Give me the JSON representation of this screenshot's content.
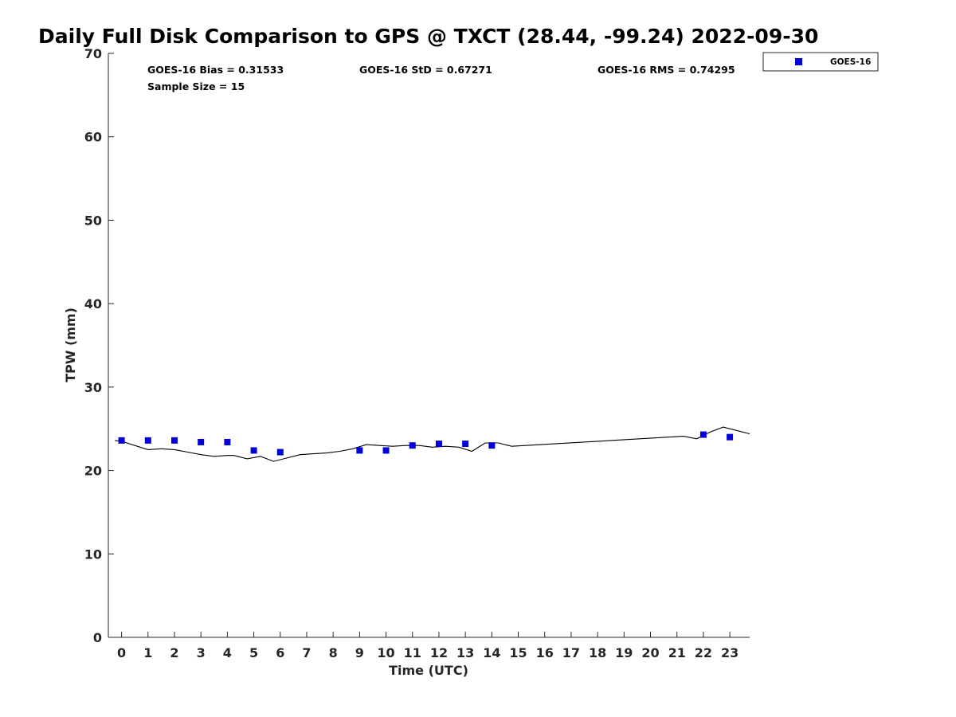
{
  "colors": {
    "marker": "#0000dd",
    "line": "#000000",
    "axis": "#262626",
    "background": "#ffffff"
  },
  "chart_data": {
    "type": "scatter",
    "title": "Daily Full Disk Comparison to GPS @ TXCT (28.44, -99.24) 2022-09-30",
    "xlabel": "Time (UTC)",
    "ylabel": "TPW (mm)",
    "xlim": [
      -0.5,
      23.75
    ],
    "ylim": [
      0,
      70
    ],
    "xticks": [
      0,
      1,
      2,
      3,
      4,
      5,
      6,
      7,
      8,
      9,
      10,
      11,
      12,
      13,
      14,
      15,
      16,
      17,
      18,
      19,
      20,
      21,
      22,
      23
    ],
    "yticks": [
      0,
      10,
      20,
      30,
      40,
      50,
      60,
      70
    ],
    "grid": false,
    "legend": {
      "placement": "outside-top-right",
      "entries": [
        "GOES-16"
      ]
    },
    "stats": {
      "bias": "GOES-16 Bias = 0.31533",
      "std": "GOES-16 StD = 0.67271",
      "rms": "GOES-16 RMS = 0.74295",
      "sample": "Sample Size = 15"
    },
    "series": [
      {
        "name": "GOES-16",
        "kind": "marker",
        "x": [
          0,
          1,
          2,
          3,
          4,
          5,
          6,
          9,
          10,
          11,
          12,
          13,
          14,
          22,
          23
        ],
        "y": [
          23.6,
          23.6,
          23.6,
          23.4,
          23.4,
          22.4,
          22.2,
          22.4,
          22.4,
          23.0,
          23.2,
          23.2,
          23.0,
          24.3,
          24.0
        ]
      },
      {
        "kind": "line",
        "x": [
          -0.25,
          0,
          0.5,
          1,
          1.5,
          2,
          2.5,
          3,
          3.5,
          4,
          4.25,
          4.75,
          5.25,
          5.75,
          6.25,
          6.75,
          7.25,
          7.75,
          8.25,
          8.75,
          9.25,
          9.75,
          10.25,
          10.75,
          11.25,
          11.75,
          12.25,
          12.75,
          13.25,
          13.75,
          14.25,
          14.75,
          21.25,
          21.75,
          22.25,
          22.75,
          23.25,
          23.75
        ],
        "y": [
          23.6,
          23.5,
          23.0,
          22.5,
          22.6,
          22.5,
          22.2,
          21.9,
          21.7,
          21.8,
          21.8,
          21.4,
          21.7,
          21.1,
          21.5,
          21.9,
          22.0,
          22.1,
          22.3,
          22.6,
          23.1,
          23.0,
          22.9,
          23.0,
          23.0,
          22.8,
          22.9,
          22.8,
          22.3,
          23.3,
          23.3,
          22.9,
          24.1,
          23.8,
          24.6,
          25.2,
          24.8,
          24.4
        ]
      }
    ]
  }
}
